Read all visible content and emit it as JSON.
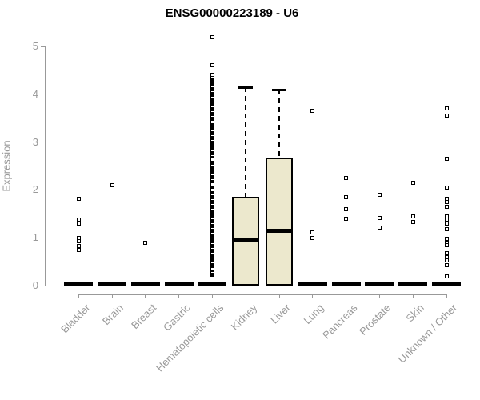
{
  "title": "ENSG00000223189 - U6",
  "y_axis": {
    "label": "Expression",
    "ticks": [
      0,
      1,
      2,
      3,
      4,
      5
    ],
    "min": 0,
    "max": 5
  },
  "x_axis": {
    "categories": [
      "Bladder",
      "Brain",
      "Breast",
      "Gastric",
      "Hematopoietic cells",
      "Kidney",
      "Liver",
      "Lung",
      "Pancreas",
      "Prostate",
      "Skin",
      "Unknown / Other"
    ]
  },
  "colors": {
    "box_fill": "#ece8cd",
    "box_border": "#000000",
    "axis": "#999999",
    "label_text": "#999999",
    "title_text": "#000000",
    "point": "#000000"
  },
  "chart_data": {
    "type": "box-scatter",
    "title": "ENSG00000223189 - U6",
    "xlabel": "",
    "ylabel": "Expression",
    "ylim": [
      0,
      5
    ],
    "grid": false,
    "categories": [
      "Bladder",
      "Brain",
      "Breast",
      "Gastric",
      "Hematopoietic cells",
      "Kidney",
      "Liver",
      "Lung",
      "Pancreas",
      "Prostate",
      "Skin",
      "Unknown / Other"
    ],
    "groups": [
      {
        "category": "Bladder",
        "median": 0,
        "points": [
          1.82,
          1.38,
          1.3,
          1.0,
          0.92,
          0.83,
          0.75
        ]
      },
      {
        "category": "Brain",
        "median": 0,
        "points": [
          2.1
        ]
      },
      {
        "category": "Breast",
        "median": 0,
        "points": [
          0.9
        ]
      },
      {
        "category": "Gastric",
        "median": 0,
        "points": []
      },
      {
        "category": "Hematopoietic cells",
        "median": 0,
        "points": [
          5.2,
          4.6,
          0.35
        ],
        "dense_segments": [
          [
            3.48,
            4.4
          ],
          [
            2.72,
            3.42
          ],
          [
            2.2,
            2.64
          ],
          [
            2.08,
            2.12
          ],
          [
            0.22,
            2.0
          ]
        ]
      },
      {
        "category": "Kidney",
        "box": {
          "q1": 0,
          "median": 0.95,
          "q3": 1.85,
          "whisker_high": 4.15
        },
        "points": []
      },
      {
        "category": "Liver",
        "box": {
          "q1": 0,
          "median": 1.15,
          "q3": 2.68,
          "whisker_high": 4.1
        },
        "points": []
      },
      {
        "category": "Lung",
        "median": 0,
        "points": [
          3.65,
          1.12,
          1.0
        ]
      },
      {
        "category": "Pancreas",
        "median": 0,
        "points": [
          2.25,
          1.85,
          1.6,
          1.4
        ]
      },
      {
        "category": "Prostate",
        "median": 0,
        "points": [
          1.9,
          1.42,
          1.22
        ]
      },
      {
        "category": "Skin",
        "median": 0,
        "points": [
          2.15,
          1.45,
          1.33
        ]
      },
      {
        "category": "Unknown / Other",
        "median": 0,
        "points": [
          3.7,
          3.55,
          2.65,
          2.05,
          1.82,
          1.75,
          1.65,
          1.45,
          1.38,
          1.3,
          1.18,
          0.98,
          0.9,
          0.85,
          0.68,
          0.6,
          0.52,
          0.42,
          0.2
        ]
      }
    ]
  }
}
